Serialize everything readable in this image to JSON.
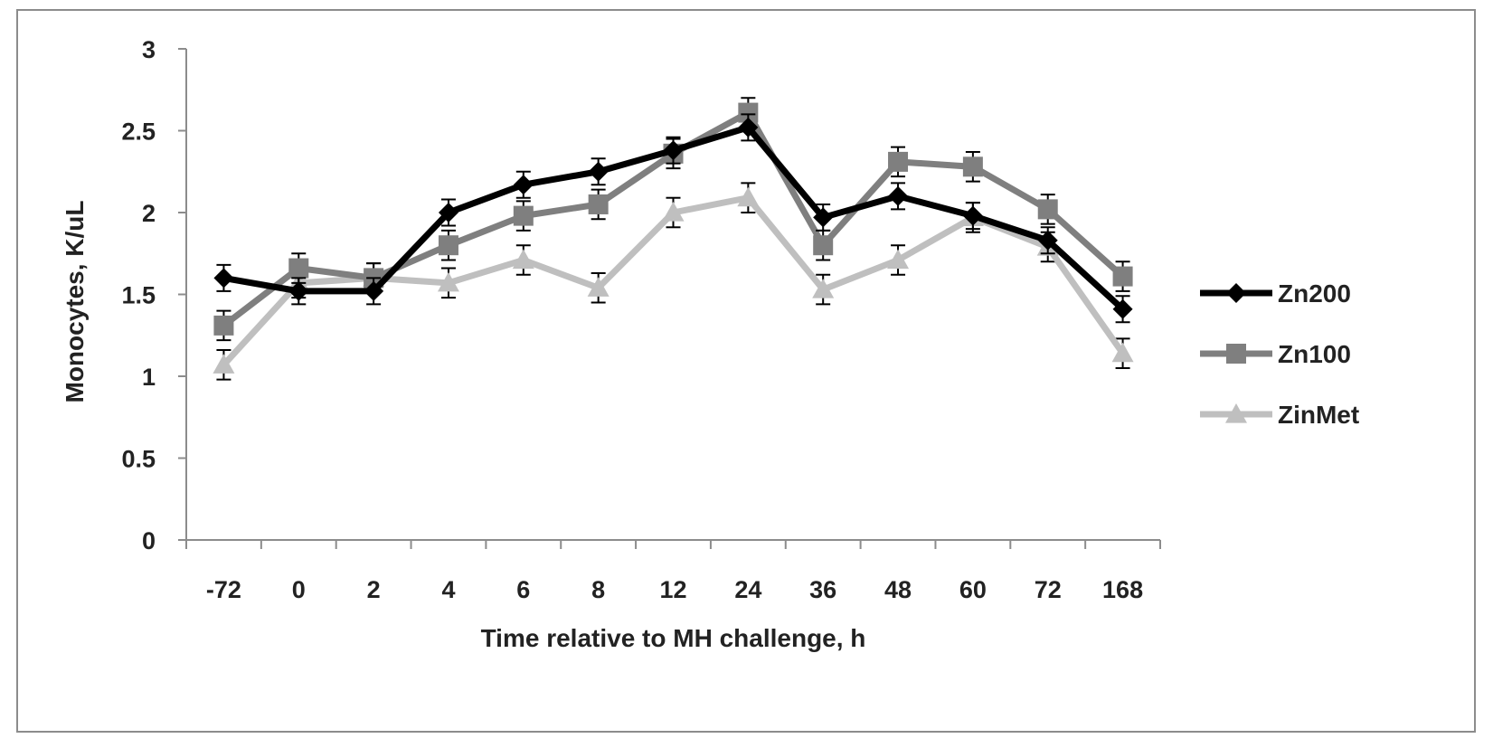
{
  "chart_data": {
    "type": "line",
    "title": "",
    "xlabel": "Time relative to MH challenge, h",
    "ylabel": "Monocytes, K/uL",
    "categories": [
      "-72",
      "0",
      "2",
      "4",
      "6",
      "8",
      "12",
      "24",
      "36",
      "48",
      "60",
      "72",
      "168"
    ],
    "ylim": [
      0,
      3
    ],
    "yticks": [
      "0",
      "0.5",
      "1",
      "1.5",
      "2",
      "2.5",
      "3"
    ],
    "grid": false,
    "legend_position": "right",
    "series": [
      {
        "name": "Zn200",
        "color": "#000000",
        "marker": "diamond",
        "values": [
          1.6,
          1.52,
          1.52,
          2.0,
          2.17,
          2.25,
          2.38,
          2.52,
          1.97,
          2.1,
          1.98,
          1.83,
          1.41
        ],
        "errors": [
          0.08,
          0.08,
          0.08,
          0.08,
          0.08,
          0.08,
          0.08,
          0.08,
          0.08,
          0.08,
          0.08,
          0.08,
          0.08
        ]
      },
      {
        "name": "Zn100",
        "color": "#7f7f7f",
        "marker": "square",
        "values": [
          1.31,
          1.66,
          1.6,
          1.8,
          1.98,
          2.05,
          2.36,
          2.61,
          1.8,
          2.31,
          2.28,
          2.02,
          1.61
        ],
        "errors": [
          0.09,
          0.09,
          0.09,
          0.09,
          0.09,
          0.09,
          0.09,
          0.09,
          0.09,
          0.09,
          0.09,
          0.09,
          0.09
        ]
      },
      {
        "name": "ZinMet",
        "color": "#bfbfbf",
        "marker": "triangle",
        "values": [
          1.07,
          1.57,
          1.6,
          1.57,
          1.71,
          1.54,
          2.0,
          2.09,
          1.53,
          1.71,
          1.97,
          1.79,
          1.14
        ],
        "errors": [
          0.09,
          0.09,
          0.09,
          0.09,
          0.09,
          0.09,
          0.09,
          0.09,
          0.09,
          0.09,
          0.09,
          0.09,
          0.09
        ]
      }
    ]
  }
}
